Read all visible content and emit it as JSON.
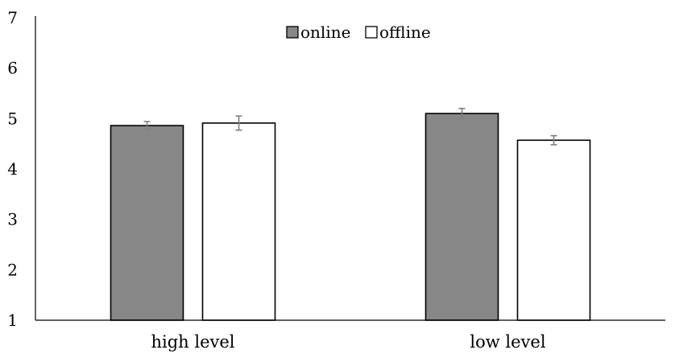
{
  "chart_data": {
    "type": "bar",
    "categories": [
      "high level",
      "low level"
    ],
    "series": [
      {
        "name": "online",
        "values": [
          4.86,
          5.1
        ],
        "error": [
          0.08,
          0.1
        ],
        "color": "#878787"
      },
      {
        "name": "offline",
        "values": [
          4.91,
          4.57
        ],
        "error": [
          0.14,
          0.09
        ],
        "color": "#ffffff"
      }
    ],
    "ylim": [
      1,
      7
    ],
    "yticks": [
      "1",
      "2",
      "3",
      "4",
      "5",
      "6",
      "7"
    ],
    "grid": false,
    "legend_position": "top-center",
    "title": "",
    "xlabel": "",
    "ylabel": ""
  }
}
